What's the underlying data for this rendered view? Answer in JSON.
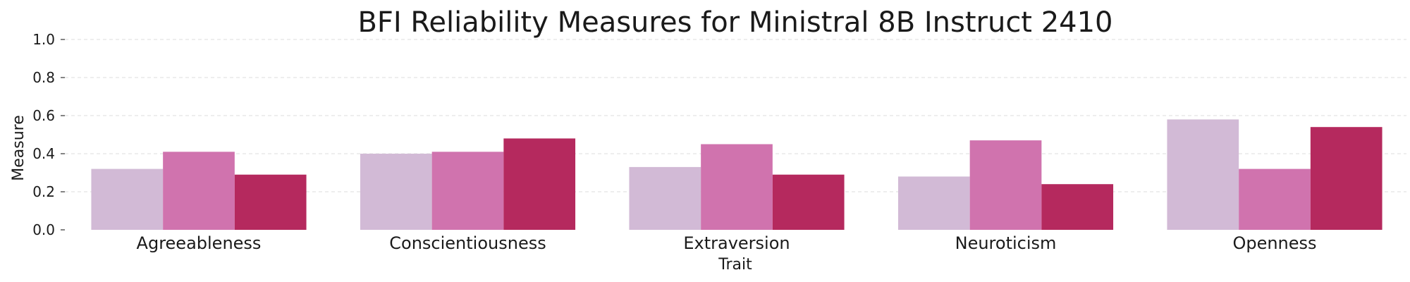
{
  "chart_data": {
    "type": "bar",
    "title": "BFI Reliability Measures for Ministral 8B Instruct 2410",
    "xlabel": "Trait",
    "ylabel": "Measure",
    "ylim": [
      0,
      1.0
    ],
    "yticks": [
      "0.0",
      "0.2",
      "0.4",
      "0.6",
      "0.8",
      "1.0"
    ],
    "categories": [
      "Agreeableness",
      "Conscientiousness",
      "Extraversion",
      "Neuroticism",
      "Openness"
    ],
    "grid": "y-dashed",
    "series": [
      {
        "color": "#d2bad6",
        "values": [
          0.32,
          0.4,
          0.33,
          0.28,
          0.58
        ]
      },
      {
        "color": "#d073ae",
        "values": [
          0.41,
          0.41,
          0.45,
          0.47,
          0.32
        ]
      },
      {
        "color": "#b5295e",
        "values": [
          0.29,
          0.48,
          0.29,
          0.24,
          0.54
        ]
      }
    ]
  }
}
